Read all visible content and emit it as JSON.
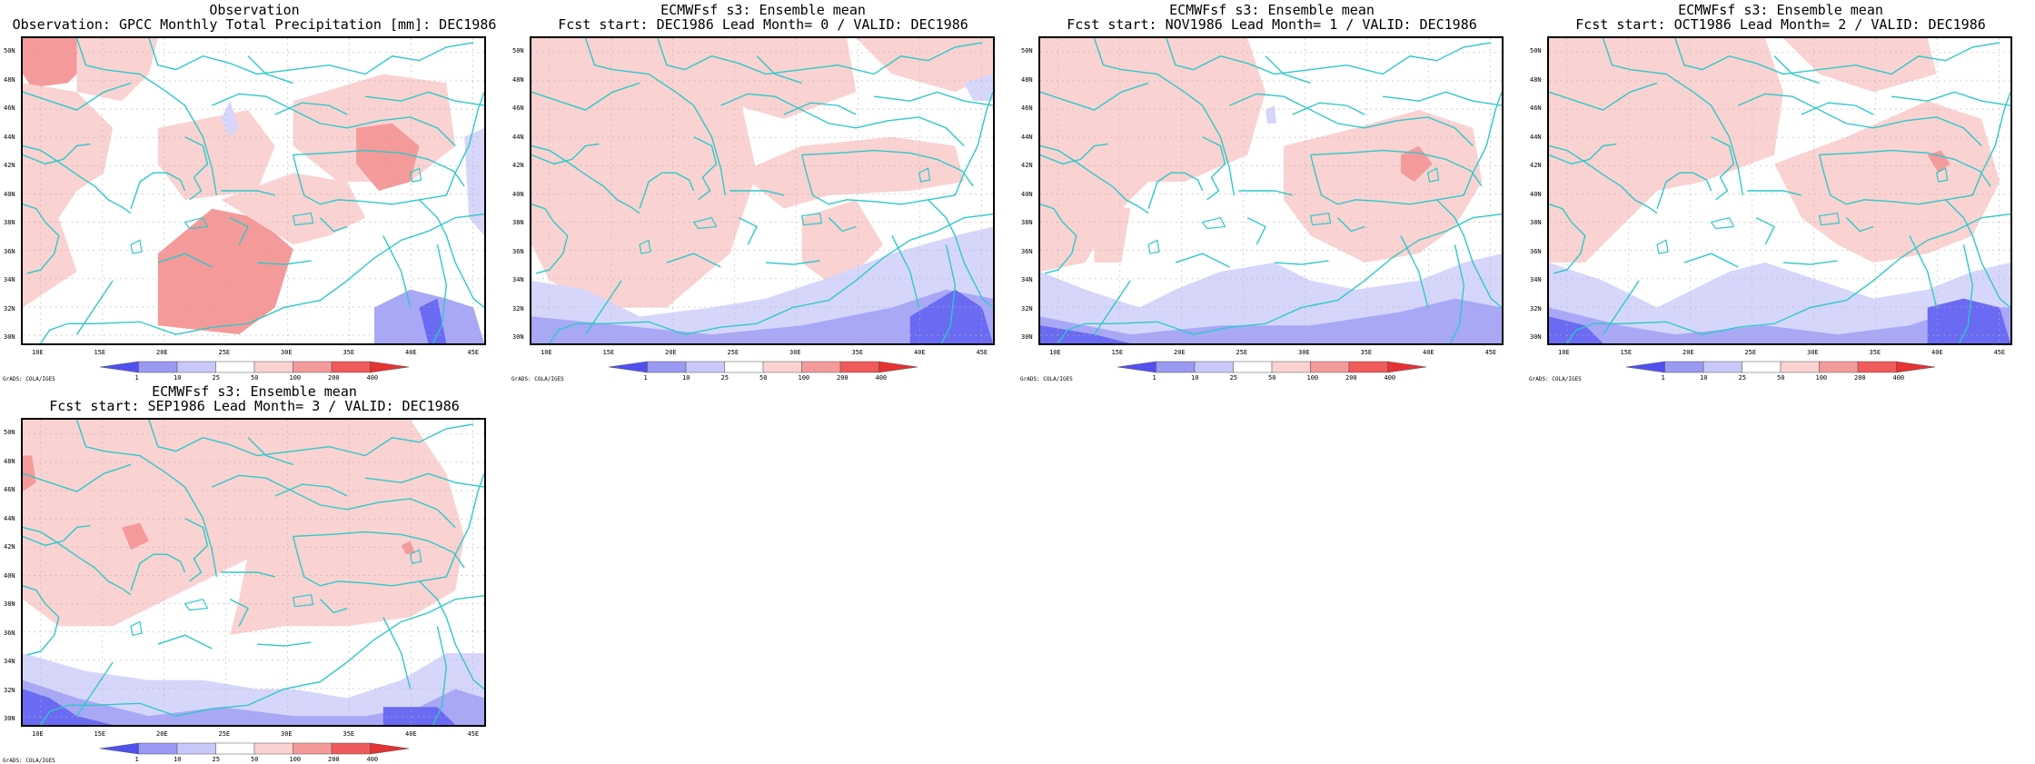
{
  "panels": [
    {
      "title1": "Observation",
      "title2": "Observation: GPCC Monthly Total Precipitation [mm]: DEC1986"
    },
    {
      "title1": "ECMWFsf s3: Ensemble mean",
      "title2": "Fcst start: DEC1986  Lead Month= 0 / VALID: DEC1986"
    },
    {
      "title1": "ECMWFsf s3: Ensemble mean",
      "title2": "Fcst start: NOV1986  Lead Month= 1 / VALID: DEC1986"
    },
    {
      "title1": "ECMWFsf s3: Ensemble mean",
      "title2": "Fcst start: OCT1986  Lead Month= 2 / VALID: DEC1986"
    },
    {
      "title1": "ECMWFsf s3: Ensemble mean",
      "title2": "Fcst start: SEP1986  Lead Month= 3 / VALID: DEC1986"
    }
  ],
  "lat_labels": [
    "50N",
    "48N",
    "46N",
    "44N",
    "42N",
    "40N",
    "38N",
    "36N",
    "34N",
    "32N",
    "30N"
  ],
  "lon_labels": [
    "10E",
    "15E",
    "20E",
    "25E",
    "30E",
    "35E",
    "40E",
    "45E"
  ],
  "colorbar_labels": [
    "1",
    "10",
    "25",
    "50",
    "100",
    "200",
    "400"
  ],
  "colorbar_colors": [
    "#5050f0",
    "#9a9af5",
    "#c8c8fa",
    "#ffffff",
    "#fad2d2",
    "#f59a9a",
    "#f05a5a",
    "#e63232"
  ],
  "credit": "GrADS: COLA/IGES",
  "map_colors": {
    "coast": "#2ec8c8",
    "grid": "#b4b4b4"
  }
}
